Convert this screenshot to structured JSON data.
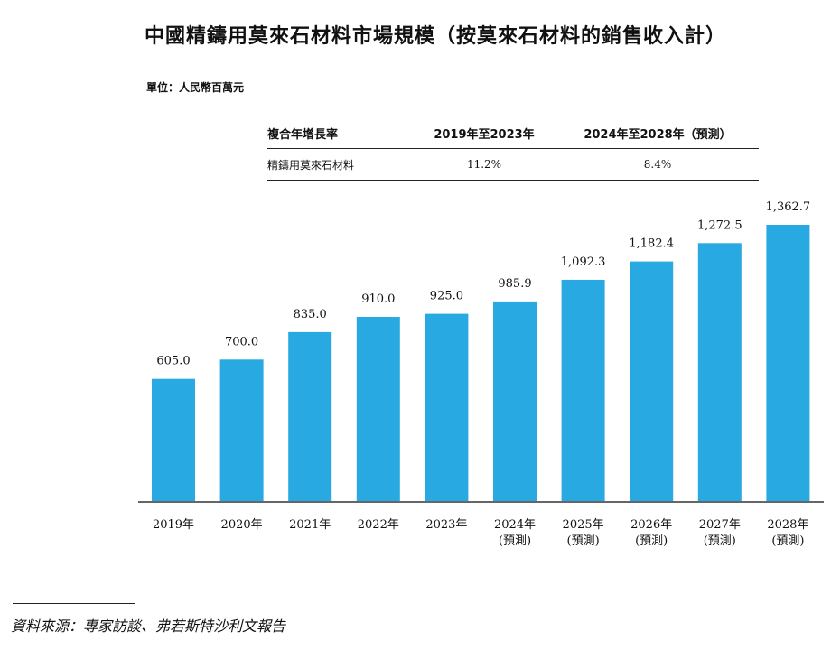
{
  "title": "中國精鑄用莫來石材料市場規模（按莫來石材料的銷售收入計）",
  "unit": "單位：人民幣百萬元",
  "cagr_table": {
    "header": [
      "複合年增長率",
      "2019年至2023年",
      "2024年至2028年（預測）"
    ],
    "row": [
      "精鑄用莫來石材料",
      "11.2%",
      "8.4%"
    ]
  },
  "colors": {
    "bar": "#29a9e1",
    "axis": "#666666"
  },
  "chart_data": {
    "type": "bar",
    "title": "中國精鑄用莫來石材料市場規模（按莫來石材料的銷售收入計）",
    "ylabel": "單位：人民幣百萬元",
    "xlabel": "",
    "categories": [
      "2019年",
      "2020年",
      "2021年",
      "2022年",
      "2023年",
      "2024年",
      "2025年",
      "2026年",
      "2027年",
      "2028年"
    ],
    "category_notes": [
      "",
      "",
      "",
      "",
      "",
      "(預測)",
      "(預測)",
      "(預測)",
      "(預測)",
      "(預測)"
    ],
    "values": [
      605.0,
      700.0,
      835.0,
      910.0,
      925.0,
      985.9,
      1092.3,
      1182.4,
      1272.5,
      1362.7
    ],
    "value_labels": [
      "605.0",
      "700.0",
      "835.0",
      "910.0",
      "925.0",
      "985.9",
      "1,092.3",
      "1,182.4",
      "1,272.5",
      "1,362.7"
    ],
    "ylim": [
      0,
      1362.7
    ],
    "grid": false,
    "legend": "none"
  },
  "source": "資料來源：專家訪談、弗若斯特沙利文報告"
}
